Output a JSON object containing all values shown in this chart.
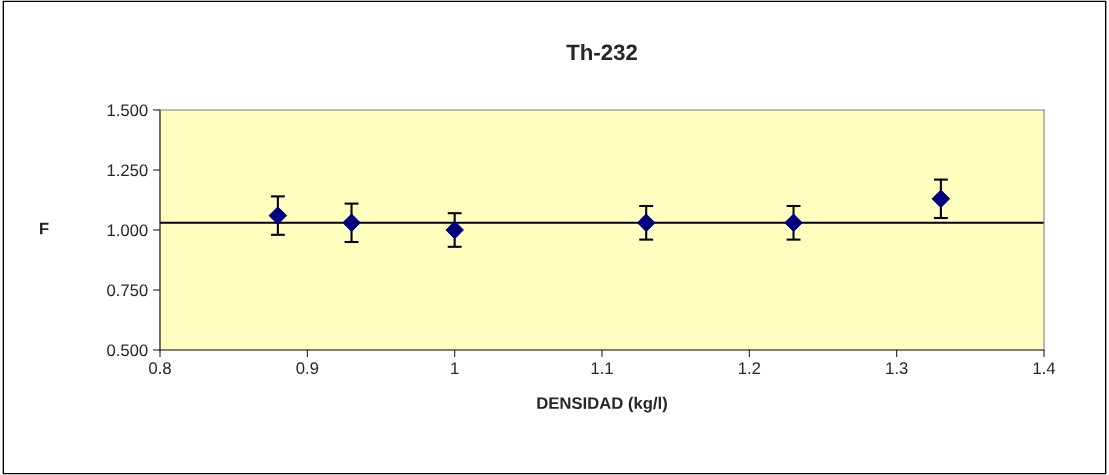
{
  "chart_data": {
    "type": "scatter",
    "title": "Th-232",
    "xlabel": "DENSIDAD (kg/l)",
    "ylabel": "F",
    "x": [
      0.88,
      0.93,
      1.0,
      1.13,
      1.23,
      1.33
    ],
    "values": [
      1.06,
      1.03,
      1.0,
      1.03,
      1.03,
      1.13
    ],
    "errors": [
      0.08,
      0.08,
      0.07,
      0.07,
      0.07,
      0.08
    ],
    "color": "#000080",
    "marker": "diamond",
    "grid": false,
    "legend": false,
    "xlim": [
      0.8,
      1.4
    ],
    "xticks": [
      0.8,
      0.9,
      1,
      1.1,
      1.2,
      1.3,
      1.4
    ],
    "ylim": [
      0.5,
      1.5
    ],
    "yticks": [
      {
        "value": 0.5,
        "label": "0.500"
      },
      {
        "value": 0.75,
        "label": "0.750"
      },
      {
        "value": 1.0,
        "label": "1.000"
      },
      {
        "value": 1.25,
        "label": "1.250"
      },
      {
        "value": 1.5,
        "label": "1.500"
      }
    ],
    "ref_lines": [
      {
        "axis": "y",
        "value": 1.03,
        "color": "#000000",
        "line_style": "solid"
      }
    ]
  }
}
